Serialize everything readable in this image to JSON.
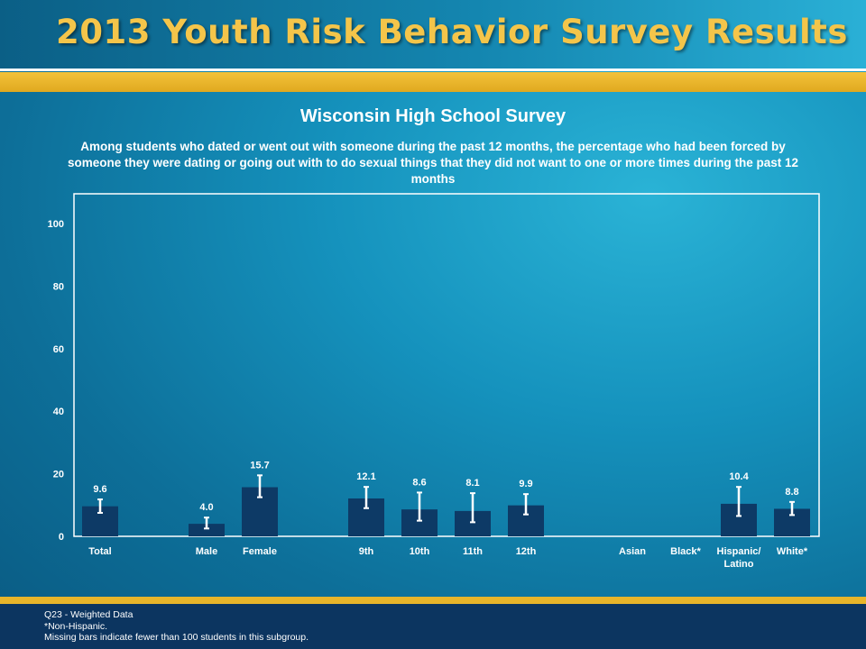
{
  "banner": {
    "title": "2013 Youth Risk Behavior Survey Results"
  },
  "chart_data": {
    "type": "bar",
    "title": "Wisconsin High School Survey",
    "subtitle": "Among students who dated or went out with someone during the past 12 months, the percentage who had been forced by someone they were dating or going out with to do sexual things that they did not want to one or more times during the past 12 months",
    "categories": [
      "Total",
      "Male",
      "Female",
      "9th",
      "10th",
      "11th",
      "12th",
      "Asian",
      "Black*",
      "Hispanic/ Latino",
      "White*"
    ],
    "values": [
      9.6,
      4.0,
      15.7,
      12.1,
      8.6,
      8.1,
      9.9,
      null,
      null,
      10.4,
      8.8
    ],
    "value_labels": [
      "9.6",
      "4.0",
      "15.7",
      "12.1",
      "8.6",
      "8.1",
      "9.9",
      "",
      "",
      "10.4",
      "8.8"
    ],
    "error_low": [
      7.5,
      2.5,
      12.5,
      9.0,
      5.0,
      4.5,
      7.0,
      null,
      null,
      6.5,
      6.8
    ],
    "error_high": [
      11.8,
      6.0,
      19.5,
      15.8,
      14.0,
      13.8,
      13.5,
      null,
      null,
      15.8,
      11.0
    ],
    "ylim": [
      0,
      100
    ],
    "yticks": [
      0,
      20,
      40,
      60,
      80,
      100
    ],
    "xlabel": "",
    "ylabel": "",
    "grid": false,
    "bar_color": "#0d3a66",
    "errorbar_color": "#ffffff"
  },
  "notes": {
    "line1": "Q23 - Weighted Data",
    "line2": "*Non-Hispanic.",
    "line3": "Missing bars indicate fewer than 100 students in this subgroup."
  },
  "colors": {
    "accent": "#f3c23a",
    "footer": "#0c3560"
  }
}
